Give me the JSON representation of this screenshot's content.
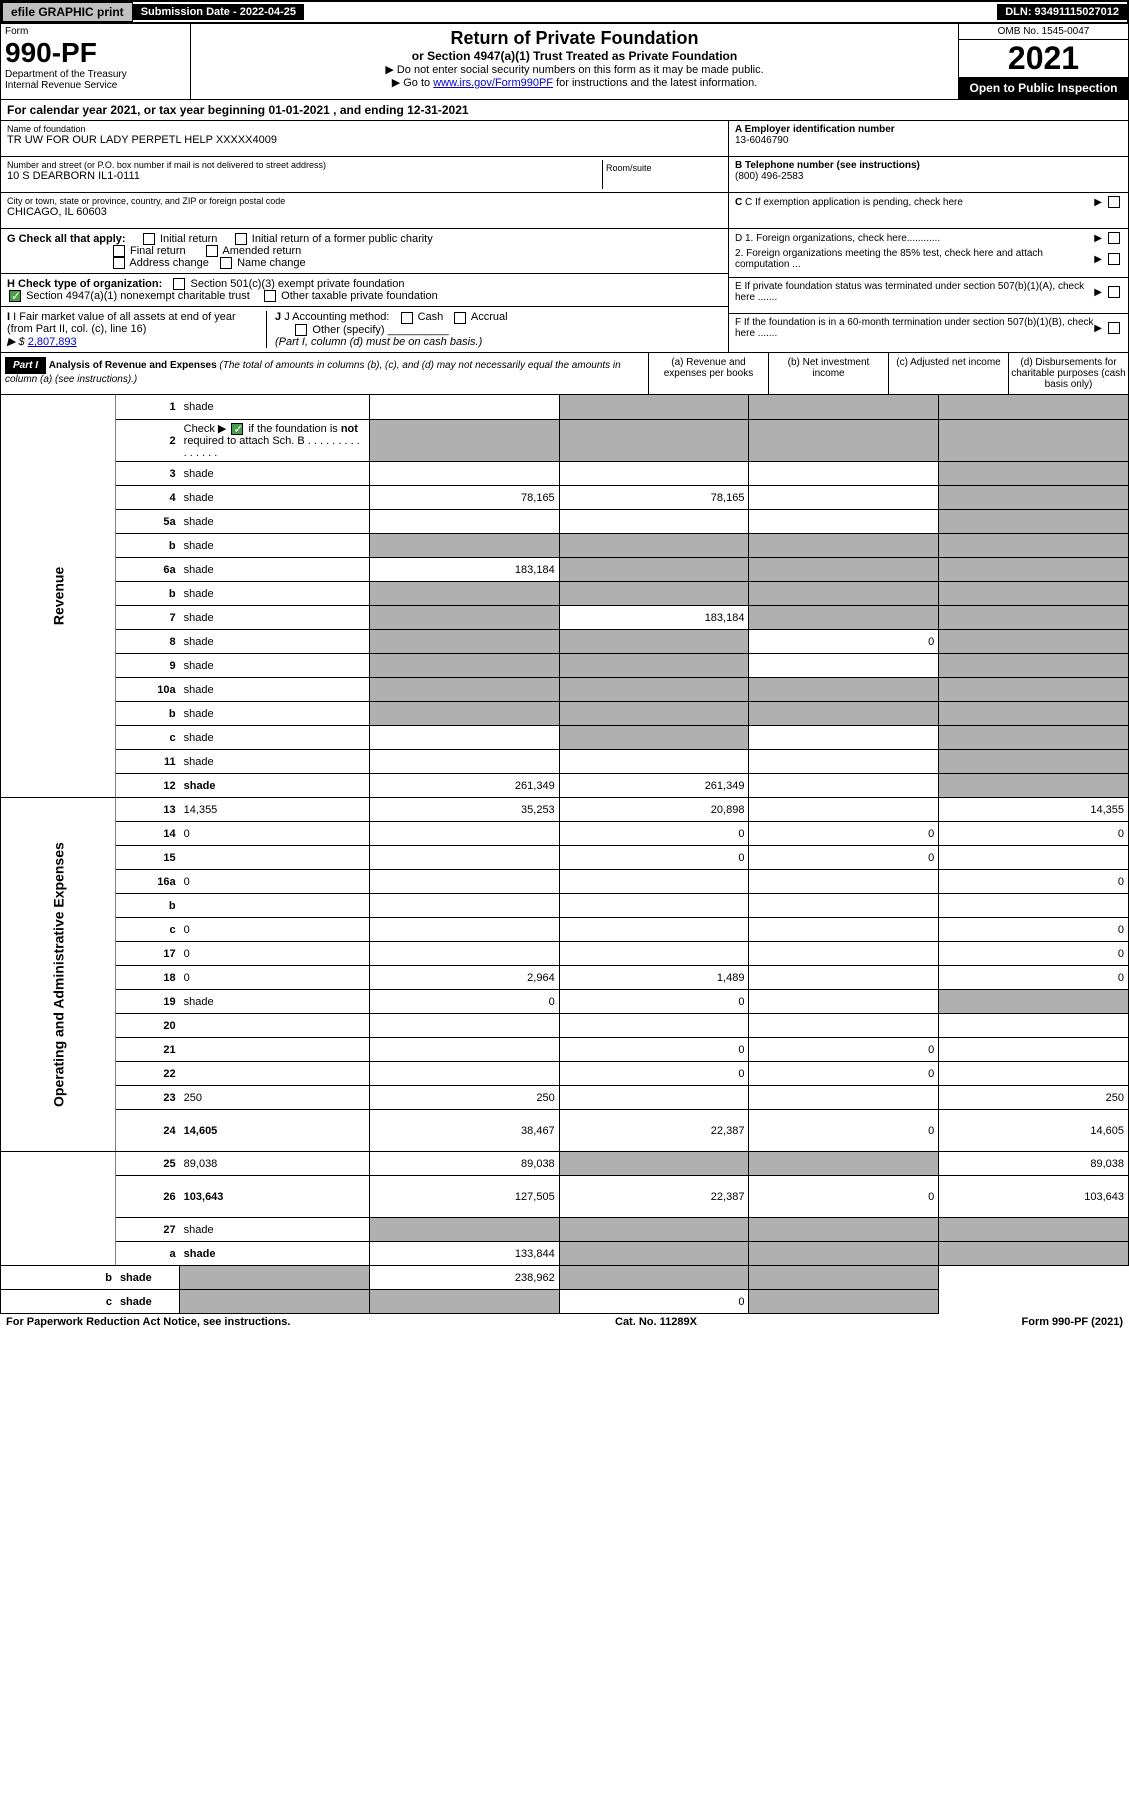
{
  "topbar": {
    "efile": "efile GRAPHIC print",
    "sub_label": "Submission Date - 2022-04-25",
    "dln": "DLN: 93491115027012"
  },
  "header": {
    "form": "Form",
    "form_num": "990-PF",
    "dept": "Department of the Treasury\nInternal Revenue Service",
    "title": "Return of Private Foundation",
    "subtitle": "or Section 4947(a)(1) Trust Treated as Private Foundation",
    "note1": "▶ Do not enter social security numbers on this form as it may be made public.",
    "note2_pre": "▶ Go to ",
    "note2_link": "www.irs.gov/Form990PF",
    "note2_post": " for instructions and the latest information.",
    "omb": "OMB No. 1545-0047",
    "year": "2021",
    "inspect": "Open to Public Inspection"
  },
  "cal": "For calendar year 2021, or tax year beginning 01-01-2021            , and ending 12-31-2021",
  "info": {
    "name_label": "Name of foundation",
    "name": "TR UW FOR OUR LADY PERPETL HELP XXXXX4009",
    "addr_label": "Number and street (or P.O. box number if mail is not delivered to street address)",
    "addr": "10 S DEARBORN IL1-0111",
    "room_label": "Room/suite",
    "city_label": "City or town, state or province, country, and ZIP or foreign postal code",
    "city": "CHICAGO, IL  60603",
    "a_label": "A Employer identification number",
    "a_val": "13-6046790",
    "b_label": "B Telephone number (see instructions)",
    "b_val": "(800) 496-2583",
    "c_label": "C If exemption application is pending, check here",
    "d1": "D 1. Foreign organizations, check here............",
    "d2": "2. Foreign organizations meeting the 85% test, check here and attach computation ...",
    "e": "E  If private foundation status was terminated under section 507(b)(1)(A), check here .......",
    "f": "F  If the foundation is in a 60-month termination under section 507(b)(1)(B), check here .......",
    "g_label": "G Check all that apply:",
    "g_opts": [
      "Initial return",
      "Final return",
      "Address change",
      "Initial return of a former public charity",
      "Amended return",
      "Name change"
    ],
    "h_label": "H Check type of organization:",
    "h1": "Section 501(c)(3) exempt private foundation",
    "h2": "Section 4947(a)(1) nonexempt charitable trust",
    "h3": "Other taxable private foundation",
    "i_label": "I Fair market value of all assets at end of year (from Part II, col. (c), line 16)",
    "i_val": "2,807,893",
    "j_label": "J Accounting method:",
    "j1": "Cash",
    "j2": "Accrual",
    "j3": "Other (specify)",
    "j_note": "(Part I, column (d) must be on cash basis.)"
  },
  "part1": {
    "hdr": "Part I",
    "title": "Analysis of Revenue and Expenses",
    "note": "(The total of amounts in columns (b), (c), and (d) may not necessarily equal the amounts in column (a) (see instructions).)",
    "col_a": "(a)   Revenue and expenses per books",
    "col_b": "(b)   Net investment income",
    "col_c": "(c)   Adjusted net income",
    "col_d": "(d)   Disbursements for charitable purposes (cash basis only)"
  },
  "vlabels": {
    "rev": "Revenue",
    "exp": "Operating and Administrative Expenses"
  },
  "rows": [
    {
      "n": "1",
      "d": "shade",
      "a": "",
      "b": "shade",
      "c": "shade"
    },
    {
      "n": "2",
      "d": "shade",
      "a": "shade",
      "b": "shade",
      "c": "shade",
      "bold_not": true
    },
    {
      "n": "3",
      "d": "shade",
      "a": "",
      "b": "",
      "c": ""
    },
    {
      "n": "4",
      "d": "shade",
      "a": "78,165",
      "b": "78,165",
      "c": ""
    },
    {
      "n": "5a",
      "d": "shade",
      "a": "",
      "b": "",
      "c": ""
    },
    {
      "n": "b",
      "d": "shade",
      "a": "shade",
      "b": "shade",
      "c": "shade"
    },
    {
      "n": "6a",
      "d": "shade",
      "a": "183,184",
      "b": "shade",
      "c": "shade"
    },
    {
      "n": "b",
      "d": "shade",
      "a": "shade",
      "b": "shade",
      "c": "shade"
    },
    {
      "n": "7",
      "d": "shade",
      "a": "shade",
      "b": "183,184",
      "c": "shade"
    },
    {
      "n": "8",
      "d": "shade",
      "a": "shade",
      "b": "shade",
      "c": "0"
    },
    {
      "n": "9",
      "d": "shade",
      "a": "shade",
      "b": "shade",
      "c": ""
    },
    {
      "n": "10a",
      "d": "shade",
      "a": "shade",
      "b": "shade",
      "c": "shade"
    },
    {
      "n": "b",
      "d": "shade",
      "a": "shade",
      "b": "shade",
      "c": "shade"
    },
    {
      "n": "c",
      "d": "shade",
      "a": "",
      "b": "shade",
      "c": ""
    },
    {
      "n": "11",
      "d": "shade",
      "a": "",
      "b": "",
      "c": ""
    },
    {
      "n": "12",
      "d": "shade",
      "a": "261,349",
      "b": "261,349",
      "c": "",
      "bold": true
    },
    {
      "n": "13",
      "d": "14,355",
      "a": "35,253",
      "b": "20,898",
      "c": "",
      "sect": "exp"
    },
    {
      "n": "14",
      "d": "0",
      "a": "",
      "b": "0",
      "c": "0"
    },
    {
      "n": "15",
      "d": "",
      "a": "",
      "b": "0",
      "c": "0"
    },
    {
      "n": "16a",
      "d": "0",
      "a": "",
      "b": "",
      "c": ""
    },
    {
      "n": "b",
      "d": "",
      "a": "",
      "b": "",
      "c": ""
    },
    {
      "n": "c",
      "d": "0",
      "a": "",
      "b": "",
      "c": ""
    },
    {
      "n": "17",
      "d": "0",
      "a": "",
      "b": "",
      "c": ""
    },
    {
      "n": "18",
      "d": "0",
      "a": "2,964",
      "b": "1,489",
      "c": ""
    },
    {
      "n": "19",
      "d": "shade",
      "a": "0",
      "b": "0",
      "c": ""
    },
    {
      "n": "20",
      "d": "",
      "a": "",
      "b": "",
      "c": ""
    },
    {
      "n": "21",
      "d": "",
      "a": "",
      "b": "0",
      "c": "0"
    },
    {
      "n": "22",
      "d": "",
      "a": "",
      "b": "0",
      "c": "0"
    },
    {
      "n": "23",
      "d": "250",
      "a": "250",
      "b": "",
      "c": ""
    },
    {
      "n": "24",
      "d": "14,605",
      "a": "38,467",
      "b": "22,387",
      "c": "0",
      "bold": true,
      "tall": true
    },
    {
      "n": "25",
      "d": "89,038",
      "a": "89,038",
      "b": "shade",
      "c": "shade"
    },
    {
      "n": "26",
      "d": "103,643",
      "a": "127,505",
      "b": "22,387",
      "c": "0",
      "bold": true,
      "tall": true
    },
    {
      "n": "27",
      "d": "shade",
      "a": "shade",
      "b": "shade",
      "c": "shade",
      "sect": "none"
    },
    {
      "n": "a",
      "d": "shade",
      "a": "133,844",
      "b": "shade",
      "c": "shade",
      "bold": true
    },
    {
      "n": "b",
      "d": "shade",
      "a": "shade",
      "b": "238,962",
      "c": "shade",
      "bold": true
    },
    {
      "n": "c",
      "d": "shade",
      "a": "shade",
      "b": "shade",
      "c": "0",
      "bold": true
    }
  ],
  "footer": {
    "left": "For Paperwork Reduction Act Notice, see instructions.",
    "mid": "Cat. No. 11289X",
    "right": "Form 990-PF (2021)"
  },
  "colors": {
    "shade": "#b0b0b0",
    "link": "#0000cc",
    "check": "#4a9d4a"
  }
}
